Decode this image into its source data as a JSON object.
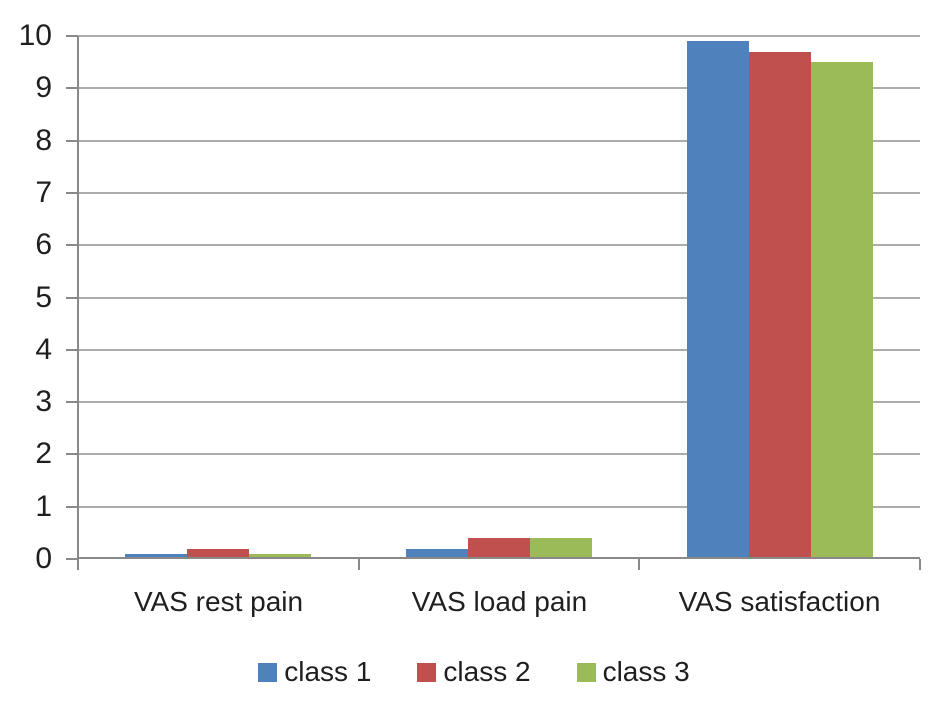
{
  "figure": {
    "background": "#ffffff"
  },
  "chart_data": {
    "type": "bar",
    "title": "",
    "categories": [
      "VAS rest pain",
      "VAS load pain",
      "VAS satisfaction"
    ],
    "series": [
      {
        "name": "class 1",
        "color": "#4F81BD",
        "values": [
          0.1,
          0.2,
          9.9
        ]
      },
      {
        "name": "class 2",
        "color": "#C0504D",
        "values": [
          0.2,
          0.4,
          9.7
        ]
      },
      {
        "name": "class 3",
        "color": "#9BBB59",
        "values": [
          0.1,
          0.4,
          9.5
        ]
      }
    ],
    "xlabel": "",
    "ylabel": "",
    "ylim": [
      0,
      10
    ],
    "ytick_step": 1,
    "ytick_labels": [
      "0",
      "1",
      "2",
      "3",
      "4",
      "5",
      "6",
      "7",
      "8",
      "9",
      "10"
    ],
    "grid": true,
    "legend_position": "bottom",
    "colors": {
      "gridline": "#ACACAC",
      "axis": "#898989",
      "text": "#1F1F1F"
    }
  }
}
